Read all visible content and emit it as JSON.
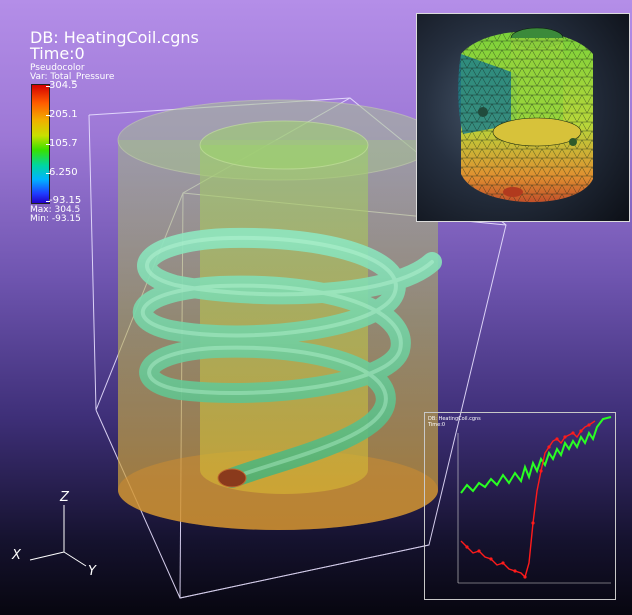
{
  "header": {
    "db_label": "DB: HeatingCoil.cgns",
    "time_label": "Time:0"
  },
  "legend": {
    "plot_type": "Pseudocolor",
    "variable": "Var: Total_Pressure",
    "ticks": [
      "304.5",
      "205.1",
      "105.7",
      "6.250",
      "-93.15"
    ],
    "max_label": "Max: 304.5",
    "min_label": "Min: -93.15"
  },
  "axes_triad": {
    "x": "X",
    "y": "Y",
    "z": "Z"
  },
  "inset_plot": {
    "db_label": "DB: HeatingCoil.cgns",
    "time_label": "Time:0",
    "colors": {
      "series_a": "#29ff22",
      "series_b": "#ff1b1b"
    }
  },
  "colors": {
    "background_top": "#b48ee8",
    "background_bottom": "#07060f",
    "cylinder": "#c2a64a",
    "coil": "#7fd9a6"
  }
}
